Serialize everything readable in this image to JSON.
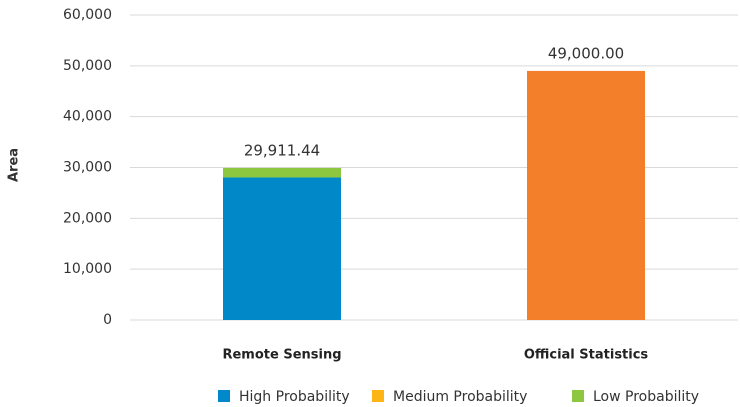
{
  "chart_data": {
    "type": "stacked_bar",
    "y_label": "Area",
    "categories": [
      "Remote Sensing",
      "Official Statistics"
    ],
    "series": [
      {
        "name": "High Probability",
        "color": "#0088c8",
        "values": [
          28040,
          null
        ]
      },
      {
        "name": "Medium Probability",
        "color": "#fdb515",
        "values": [
          0,
          null
        ]
      },
      {
        "name": "Low Probability",
        "color": "#8dc63f",
        "values": [
          1871.44,
          null
        ]
      },
      {
        "color": "#f37f2a",
        "values": [
          null,
          49000
        ]
      }
    ],
    "total_labels": [
      "29,911.44",
      "49,000.00"
    ],
    "ylim": [
      0,
      60000
    ],
    "yticks": [
      0,
      {
        "value": 10000,
        "label": "10,000"
      },
      {
        "value": 20000,
        "label": "20,000"
      },
      {
        "value": 30000,
        "label": "30,000"
      },
      {
        "value": 40000,
        "label": "40,000"
      },
      {
        "value": 50000,
        "label": "50,000"
      },
      {
        "value": 60000,
        "label": "60,000"
      }
    ],
    "grid": true,
    "legend": "bottom"
  }
}
